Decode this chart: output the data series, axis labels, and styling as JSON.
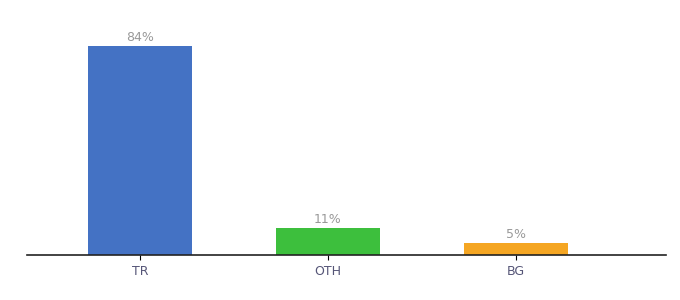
{
  "categories": [
    "TR",
    "OTH",
    "BG"
  ],
  "values": [
    84,
    11,
    5
  ],
  "bar_colors": [
    "#4472c4",
    "#3dbf3d",
    "#f5a623"
  ],
  "labels": [
    "84%",
    "11%",
    "5%"
  ],
  "background_color": "#ffffff",
  "ylim": [
    0,
    93
  ],
  "bar_width": 0.55,
  "label_fontsize": 9,
  "tick_fontsize": 9,
  "label_color": "#999999",
  "tick_color": "#555577",
  "bottom_spine_color": "#222222"
}
